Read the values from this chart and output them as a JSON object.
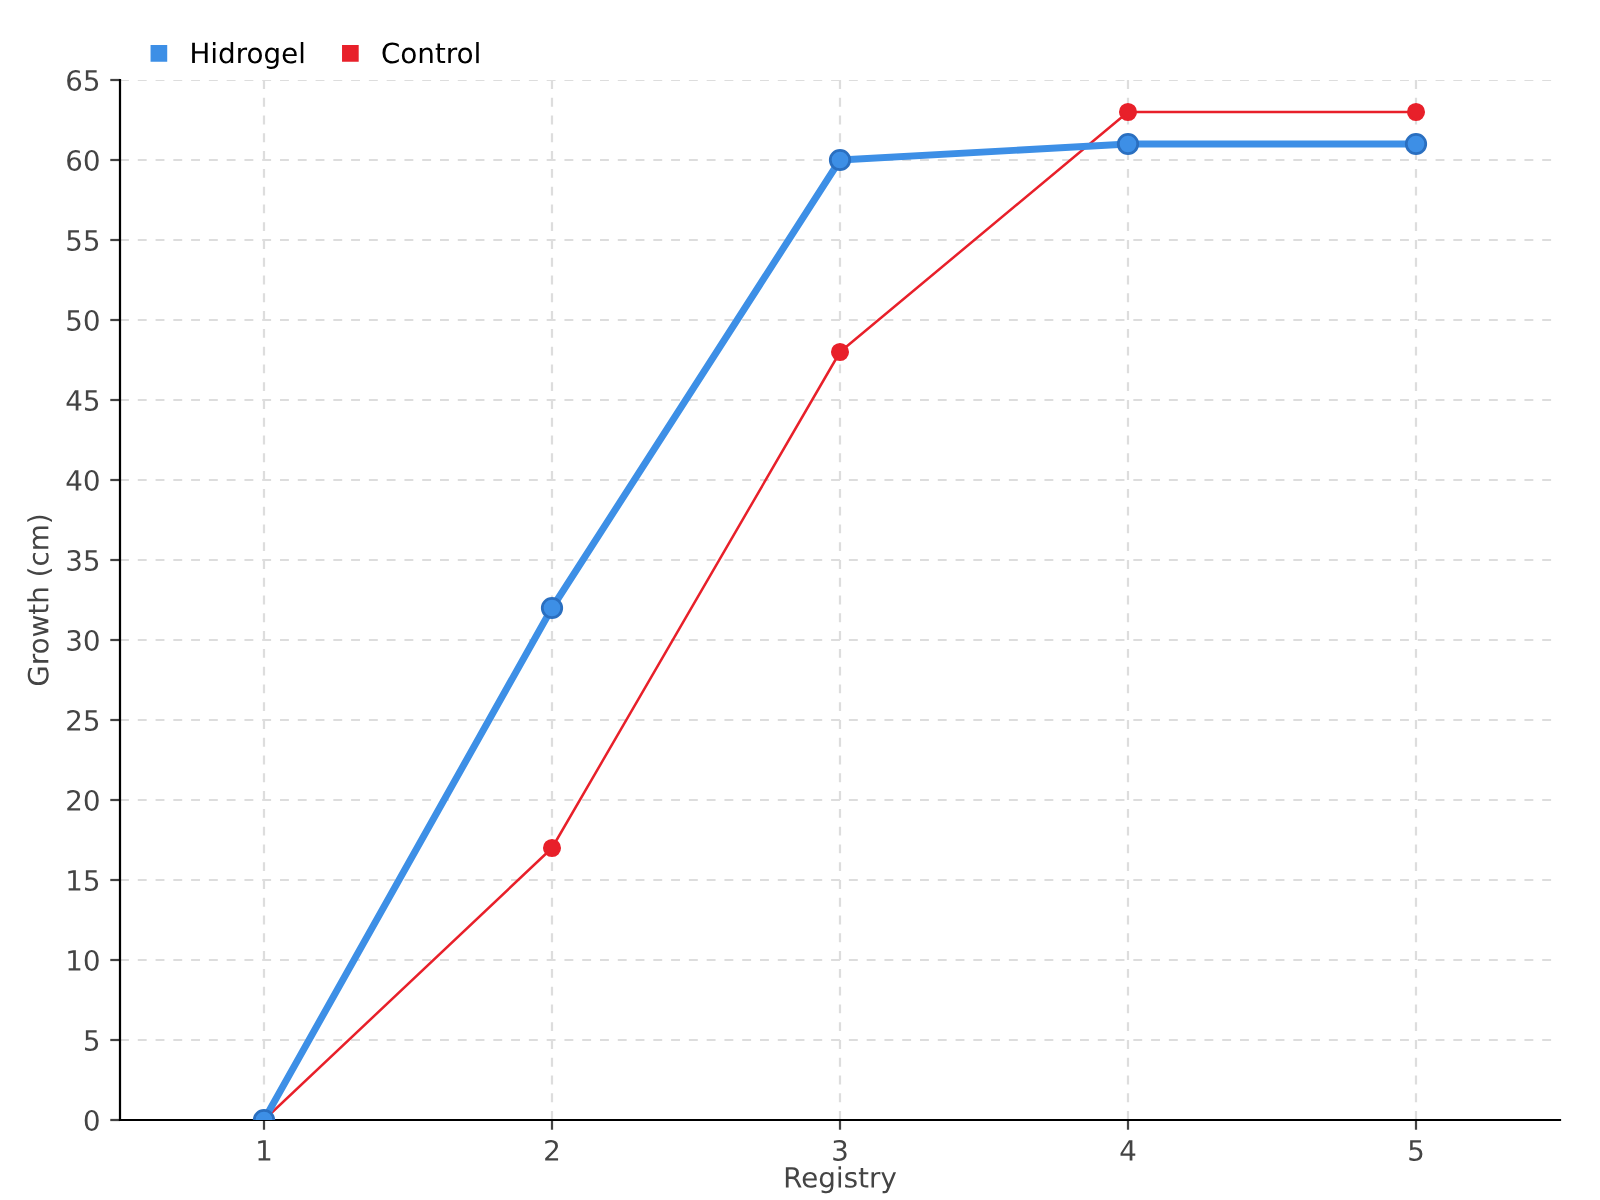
{
  "chart_data": {
    "type": "line",
    "xlabel": "Registry",
    "ylabel": "Growth (cm)",
    "categories": [
      "1",
      "2",
      "3",
      "4",
      "5"
    ],
    "series": [
      {
        "name": "Hidrogel",
        "color": "#3d8fe6",
        "values": [
          0,
          32,
          60,
          61,
          61
        ]
      },
      {
        "name": "Control",
        "color": "#e8202a",
        "values": [
          0,
          17,
          48,
          63,
          63
        ]
      }
    ],
    "ylim": [
      0,
      65
    ],
    "yticks": [
      0,
      5,
      10,
      15,
      20,
      25,
      30,
      35,
      40,
      45,
      50,
      55,
      60,
      65
    ],
    "grid": true,
    "legend": "top left",
    "marker": "circle",
    "line_style": "solid"
  }
}
